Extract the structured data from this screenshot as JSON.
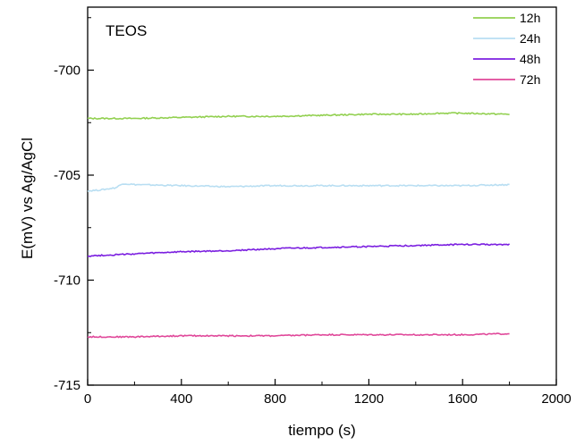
{
  "chart_data": {
    "type": "line",
    "title": "",
    "annotation": "TEOS",
    "xlabel": "tiempo (s)",
    "ylabel": "E(mV) vs Ag/AgCl",
    "xlim": [
      0,
      2000
    ],
    "ylim": [
      -715,
      -697
    ],
    "x_ticks": [
      0,
      400,
      800,
      1200,
      1600,
      2000
    ],
    "y_ticks": [
      -715,
      -710,
      -705,
      -700
    ],
    "x_tick_labels": [
      "0",
      "400",
      "800",
      "1200",
      "1600",
      "2000"
    ],
    "y_tick_labels": [
      "-715",
      "-710",
      "-705",
      "-700"
    ],
    "grid": false,
    "legend_position": "top-right",
    "series": [
      {
        "name": "12h",
        "color": "#92d050",
        "x": [
          0,
          200,
          400,
          600,
          800,
          1000,
          1200,
          1400,
          1500,
          1600,
          1800
        ],
        "y": [
          -702.3,
          -702.3,
          -702.25,
          -702.2,
          -702.2,
          -702.15,
          -702.1,
          -702.1,
          -702.05,
          -702.05,
          -702.1
        ]
      },
      {
        "name": "24h",
        "color": "#b8def2",
        "x": [
          0,
          60,
          120,
          150,
          200,
          400,
          600,
          800,
          1000,
          1200,
          1400,
          1600,
          1800
        ],
        "y": [
          -705.75,
          -705.7,
          -705.6,
          -705.4,
          -705.45,
          -705.5,
          -705.55,
          -705.5,
          -705.5,
          -705.5,
          -705.5,
          -705.5,
          -705.45
        ]
      },
      {
        "name": "48h",
        "color": "#7b1fe0",
        "x": [
          0,
          200,
          400,
          600,
          800,
          1000,
          1200,
          1400,
          1600,
          1800
        ],
        "y": [
          -708.85,
          -708.75,
          -708.65,
          -708.6,
          -708.5,
          -708.45,
          -708.4,
          -708.35,
          -708.3,
          -708.3
        ]
      },
      {
        "name": "72h",
        "color": "#e0489a",
        "x": [
          0,
          200,
          400,
          600,
          800,
          1000,
          1200,
          1400,
          1600,
          1800
        ],
        "y": [
          -712.7,
          -712.7,
          -712.65,
          -712.65,
          -712.65,
          -712.6,
          -712.6,
          -712.6,
          -712.6,
          -712.55
        ]
      }
    ]
  }
}
